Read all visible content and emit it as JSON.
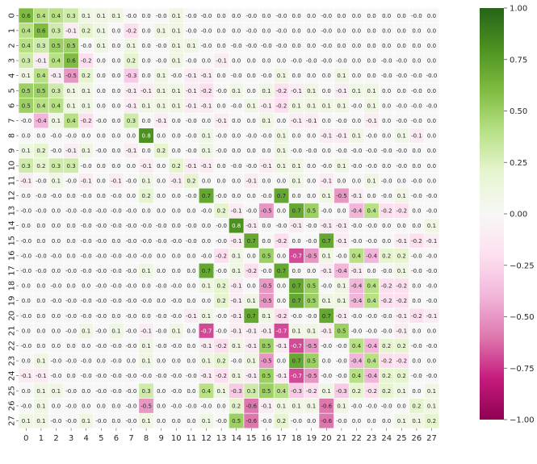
{
  "chart_data": {
    "type": "heatmap",
    "title": "",
    "xlabel": "",
    "ylabel": "",
    "x_categories": [
      "0",
      "1",
      "2",
      "3",
      "4",
      "5",
      "6",
      "7",
      "8",
      "9",
      "10",
      "11",
      "12",
      "13",
      "14",
      "15",
      "16",
      "17",
      "18",
      "19",
      "20",
      "21",
      "22",
      "23",
      "24",
      "25",
      "26",
      "27"
    ],
    "y_categories": [
      "0",
      "1",
      "2",
      "3",
      "4",
      "5",
      "6",
      "7",
      "8",
      "9",
      "10",
      "11",
      "12",
      "13",
      "14",
      "15",
      "16",
      "17",
      "18",
      "19",
      "20",
      "21",
      "22",
      "23",
      "24",
      "25",
      "26",
      "27"
    ],
    "colormap": "PiYG",
    "vmin": -1.0,
    "vmax": 1.0,
    "colorbar_ticks": [
      "1.00",
      "0.75",
      "0.50",
      "0.25",
      "0.00",
      "−0.25",
      "−0.50",
      "−0.75",
      "−1.00"
    ],
    "grid": false,
    "values": [
      [
        0.6,
        0.4,
        0.4,
        0.3,
        0.1,
        0.1,
        0.1,
        -0.0,
        0.0,
        -0.0,
        0.1,
        -0.0,
        -0.0,
        0.0,
        0.0,
        -0.0,
        0.0,
        -0.0,
        0.0,
        0.0,
        -0.0,
        0.0,
        0.0,
        0.0,
        0.0,
        0.0,
        -0.0,
        0.0
      ],
      [
        0.4,
        0.6,
        0.3,
        -0.1,
        0.2,
        0.1,
        0.0,
        -0.2,
        0.0,
        0.1,
        0.1,
        -0.0,
        -0.0,
        0.0,
        0.0,
        -0.0,
        0.0,
        -0.0,
        0.0,
        0.0,
        -0.0,
        0.0,
        0.0,
        0.0,
        0.0,
        0.0,
        0.0,
        0.0
      ],
      [
        0.4,
        0.3,
        0.5,
        0.5,
        -0.0,
        0.1,
        0.0,
        0.1,
        0.0,
        -0.0,
        0.1,
        0.1,
        -0.0,
        0.0,
        -0.0,
        -0.0,
        -0.0,
        -0.0,
        0.0,
        0.0,
        -0.0,
        0.0,
        0.0,
        0.0,
        0.0,
        0.0,
        0.0,
        0.0
      ],
      [
        0.3,
        -0.1,
        0.4,
        0.6,
        -0.2,
        0.0,
        0.0,
        0.2,
        0.0,
        -0.0,
        0.1,
        -0.0,
        0.0,
        -0.1,
        0.0,
        0.0,
        0.0,
        0.0,
        -0.0,
        -0.0,
        -0.0,
        -0.0,
        0.0,
        0.0,
        -0.0,
        -0.0,
        0.0,
        0.0
      ],
      [
        0.1,
        0.4,
        -0.1,
        -0.5,
        0.2,
        0.0,
        0.0,
        -0.3,
        0.0,
        0.1,
        -0.0,
        -0.1,
        -0.1,
        0.0,
        -0.0,
        0.0,
        -0.0,
        0.1,
        0.0,
        0.0,
        0.0,
        0.1,
        0.0,
        0.0,
        -0.0,
        -0.0,
        -0.0,
        -0.0
      ],
      [
        0.5,
        0.5,
        0.3,
        0.1,
        0.1,
        0.0,
        0.0,
        -0.1,
        -0.1,
        0.1,
        0.1,
        -0.1,
        -0.2,
        -0.0,
        0.1,
        0.0,
        0.1,
        -0.2,
        -0.1,
        0.1,
        0.0,
        -0.1,
        0.1,
        0.1,
        0.0,
        0.0,
        -0.0,
        0.0
      ],
      [
        0.5,
        0.4,
        0.4,
        0.1,
        0.1,
        0.0,
        0.0,
        -0.1,
        0.1,
        0.1,
        0.1,
        -0.1,
        -0.1,
        0.0,
        -0.0,
        0.1,
        -0.1,
        -0.2,
        0.1,
        0.1,
        0.1,
        0.1,
        -0.0,
        0.1,
        0.0,
        -0.0,
        -0.0,
        -0.0
      ],
      [
        -0.0,
        -0.4,
        0.1,
        0.4,
        -0.2,
        -0.0,
        0.0,
        0.3,
        0.0,
        -0.1,
        0.0,
        -0.0,
        0.0,
        -0.1,
        0.0,
        0.0,
        0.1,
        0.0,
        -0.1,
        -0.1,
        0.0,
        -0.0,
        0.0,
        -0.1,
        0.0,
        -0.0,
        -0.0,
        0.0
      ],
      [
        0.0,
        0.0,
        -0.0,
        -0.0,
        0.0,
        0.0,
        0.0,
        0.0,
        0.8,
        0.0,
        0.0,
        -0.0,
        0.1,
        -0.0,
        0.0,
        -0.0,
        -0.0,
        0.1,
        0.0,
        0.0,
        -0.1,
        -0.1,
        0.1,
        -0.0,
        0.0,
        0.1,
        -0.1,
        0.0
      ],
      [
        0.1,
        0.2,
        -0.0,
        -0.1,
        0.1,
        -0.0,
        0.0,
        -0.1,
        0.0,
        0.2,
        0.0,
        -0.0,
        0.1,
        -0.0,
        0.0,
        0.0,
        0.0,
        0.1,
        -0.0,
        -0.0,
        0.0,
        -0.0,
        -0.0,
        -0.0,
        -0.0,
        -0.0,
        0.0,
        0.0
      ],
      [
        0.3,
        0.2,
        0.3,
        0.3,
        -0.0,
        0.0,
        0.0,
        0.0,
        -0.1,
        0.0,
        0.2,
        -0.1,
        -0.1,
        0.0,
        -0.0,
        -0.0,
        -0.1,
        0.1,
        0.1,
        0.0,
        -0.0,
        0.1,
        -0.0,
        -0.0,
        0.0,
        -0.0,
        0.0,
        0.0
      ],
      [
        -0.1,
        -0.0,
        0.1,
        -0.0,
        -0.1,
        0.0,
        -0.1,
        -0.0,
        0.1,
        0.0,
        -0.1,
        0.2,
        0.0,
        0.0,
        0.0,
        -0.1,
        0.0,
        0.0,
        0.1,
        0.0,
        -0.1,
        0.0,
        0.0,
        0.1,
        -0.0,
        0.0,
        -0.0,
        0.0
      ],
      [
        0.0,
        -0.0,
        -0.0,
        0.0,
        -0.0,
        0.0,
        -0.0,
        0.0,
        0.2,
        0.0,
        0.0,
        -0.0,
        0.7,
        -0.0,
        0.0,
        0.0,
        -0.0,
        0.7,
        0.0,
        0.0,
        0.1,
        -0.5,
        -0.1,
        0.0,
        -0.0,
        0.1,
        -0.0,
        -0.0
      ],
      [
        -0.0,
        -0.0,
        0.0,
        -0.0,
        -0.0,
        -0.0,
        -0.0,
        -0.0,
        0.0,
        0.0,
        0.0,
        0.0,
        -0.0,
        0.2,
        -0.1,
        -0.0,
        -0.5,
        0.0,
        0.7,
        0.5,
        -0.0,
        0.0,
        -0.4,
        0.4,
        -0.2,
        -0.2,
        0.0,
        -0.0
      ],
      [
        0.0,
        0.0,
        0.0,
        0.0,
        -0.0,
        -0.0,
        -0.0,
        -0.0,
        -0.0,
        -0.0,
        0.0,
        -0.0,
        0.0,
        -0.0,
        0.8,
        -0.1,
        0.0,
        -0.0,
        -0.1,
        -0.0,
        -0.1,
        -0.1,
        -0.0,
        -0.0,
        0.0,
        0.0,
        0.0,
        0.1
      ],
      [
        -0.0,
        0.0,
        0.0,
        0.0,
        -0.0,
        -0.0,
        0.0,
        -0.0,
        -0.0,
        -0.0,
        -0.0,
        -0.0,
        0.0,
        -0.0,
        -0.1,
        0.7,
        0.0,
        -0.2,
        0.0,
        -0.0,
        0.7,
        -0.1,
        -0.0,
        -0.0,
        0.0,
        -0.1,
        -0.2,
        -0.1
      ],
      [
        -0.0,
        -0.0,
        -0.0,
        0.0,
        -0.0,
        -0.0,
        -0.0,
        -0.0,
        -0.0,
        0.0,
        0.0,
        0.0,
        -0.0,
        -0.2,
        0.1,
        0.0,
        0.5,
        0.0,
        -0.7,
        -0.5,
        0.1,
        -0.0,
        0.4,
        -0.4,
        0.2,
        0.2,
        -0.0,
        -0.0
      ],
      [
        -0.0,
        -0.0,
        0.0,
        -0.0,
        -0.0,
        -0.0,
        -0.0,
        -0.0,
        0.1,
        0.0,
        0.0,
        0.0,
        0.7,
        -0.0,
        0.1,
        -0.2,
        -0.0,
        0.7,
        0.0,
        0.0,
        -0.1,
        -0.4,
        -0.1,
        0.0,
        -0.0,
        0.1,
        -0.0,
        -0.0
      ],
      [
        0.0,
        0.0,
        -0.0,
        0.0,
        0.0,
        -0.0,
        -0.0,
        -0.0,
        0.0,
        -0.0,
        -0.0,
        0.0,
        0.1,
        0.2,
        -0.1,
        0.0,
        -0.5,
        0.0,
        0.7,
        0.5,
        -0.0,
        0.1,
        -0.4,
        0.4,
        -0.2,
        -0.2,
        0.0,
        -0.0
      ],
      [
        0.0,
        0.0,
        -0.0,
        -0.0,
        -0.0,
        -0.0,
        -0.0,
        -0.0,
        -0.0,
        0.0,
        -0.0,
        0.0,
        0.0,
        0.2,
        -0.1,
        0.1,
        -0.5,
        0.0,
        0.7,
        0.5,
        0.1,
        0.1,
        -0.4,
        0.4,
        -0.2,
        -0.2,
        0.0,
        -0.0
      ],
      [
        -0.0,
        0.0,
        0.0,
        -0.0,
        -0.0,
        -0.0,
        0.0,
        -0.0,
        0.0,
        -0.0,
        -0.0,
        -0.1,
        0.1,
        -0.0,
        -0.1,
        0.7,
        0.1,
        -0.2,
        -0.0,
        -0.0,
        0.7,
        -0.1,
        -0.0,
        -0.0,
        -0.0,
        -0.1,
        -0.2,
        -0.1
      ],
      [
        0.0,
        0.0,
        0.0,
        -0.0,
        0.1,
        -0.0,
        0.1,
        -0.0,
        -0.1,
        -0.0,
        0.1,
        0.0,
        -0.7,
        -0.0,
        -0.1,
        -0.1,
        -0.1,
        -0.7,
        0.1,
        0.1,
        -0.1,
        0.5,
        -0.0,
        -0.0,
        -0.0,
        -0.1,
        0.0,
        0.0
      ],
      [
        -0.0,
        0.0,
        0.0,
        0.0,
        0.0,
        -0.0,
        -0.0,
        -0.0,
        0.1,
        -0.0,
        -0.0,
        0.0,
        -0.1,
        -0.2,
        0.1,
        -0.1,
        0.5,
        -0.1,
        -0.7,
        -0.5,
        -0.0,
        -0.0,
        0.4,
        -0.4,
        0.2,
        0.2,
        -0.0,
        -0.0
      ],
      [
        0.0,
        0.1,
        -0.0,
        -0.0,
        -0.0,
        0.0,
        -0.0,
        0.0,
        0.1,
        0.0,
        0.0,
        0.0,
        0.1,
        0.2,
        -0.0,
        0.1,
        -0.5,
        0.0,
        0.7,
        0.5,
        0.0,
        -0.0,
        -0.4,
        0.4,
        -0.2,
        -0.2,
        0.0,
        0.0
      ],
      [
        -0.1,
        -0.1,
        -0.0,
        0.0,
        -0.0,
        -0.0,
        -0.0,
        -0.0,
        -0.0,
        -0.0,
        -0.0,
        -0.0,
        -0.1,
        -0.2,
        0.1,
        -0.1,
        0.5,
        -0.1,
        -0.7,
        -0.5,
        -0.0,
        -0.0,
        0.4,
        -0.4,
        0.2,
        0.2,
        -0.0,
        -0.0
      ],
      [
        0.0,
        0.1,
        0.1,
        -0.0,
        0.0,
        -0.0,
        -0.0,
        -0.0,
        0.3,
        0.0,
        -0.0,
        0.0,
        0.4,
        0.1,
        -0.3,
        0.3,
        0.5,
        0.4,
        -0.3,
        -0.2,
        0.1,
        -0.3,
        0.2,
        -0.2,
        0.2,
        0.1,
        0.0,
        0.1
      ],
      [
        -0.0,
        0.1,
        0.0,
        -0.0,
        0.0,
        0.0,
        0.0,
        -0.0,
        -0.5,
        0.0,
        -0.0,
        -0.0,
        -0.0,
        0.0,
        0.2,
        -0.6,
        -0.1,
        0.1,
        0.1,
        0.1,
        -0.6,
        0.1,
        -0.0,
        -0.0,
        -0.0,
        0.0,
        0.2,
        0.1
      ],
      [
        0.1,
        0.1,
        -0.0,
        -0.0,
        0.1,
        -0.0,
        0.0,
        -0.0,
        0.1,
        0.0,
        0.0,
        0.0,
        0.1,
        -0.0,
        0.5,
        -0.6,
        -0.0,
        0.2,
        -0.0,
        0.0,
        -0.6,
        -0.0,
        0.0,
        0.0,
        0.0,
        0.1,
        0.1,
        0.2
      ]
    ]
  }
}
